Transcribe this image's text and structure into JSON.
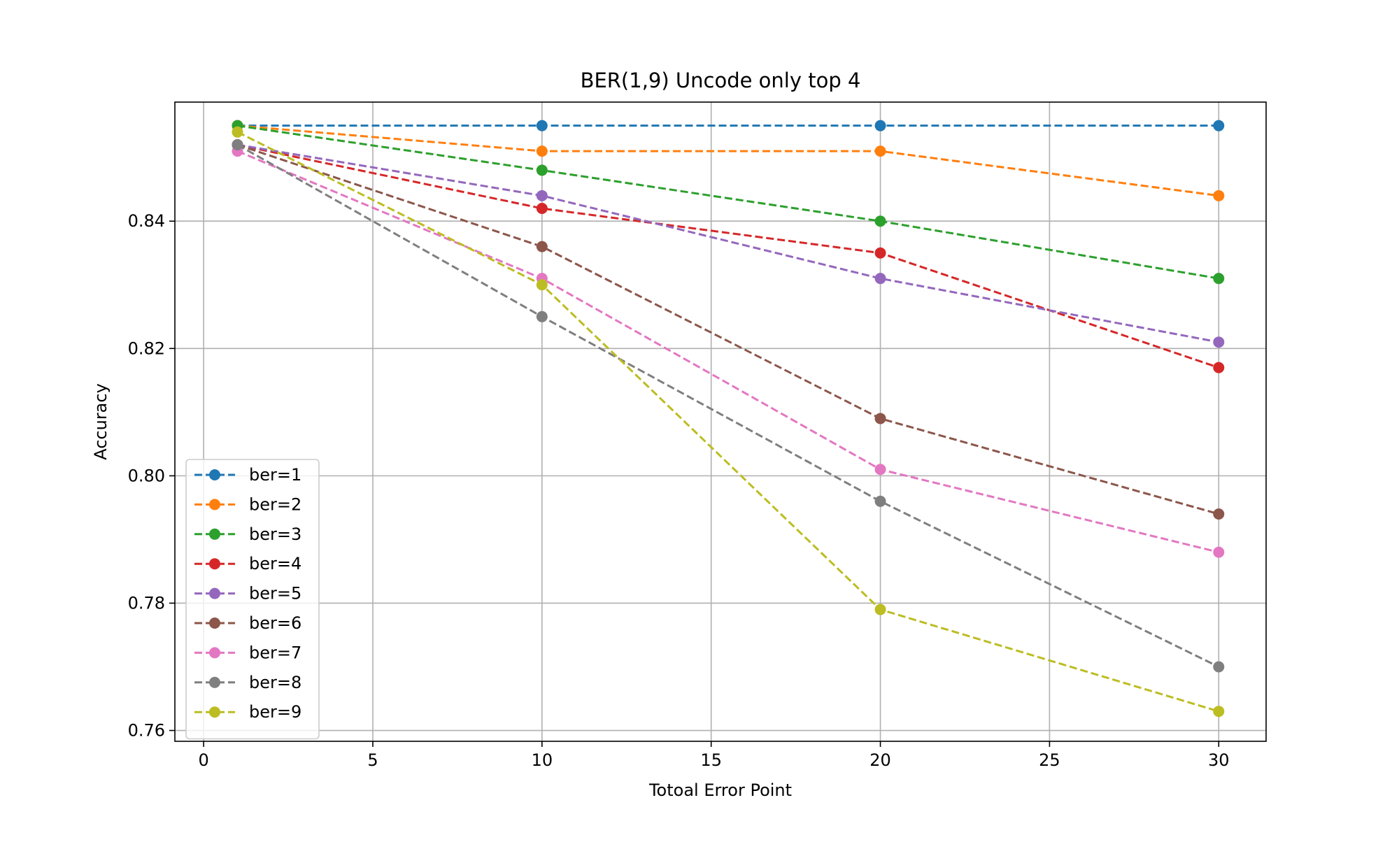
{
  "chart_data": {
    "type": "line",
    "title": "BER(1,9) Uncode only top 4",
    "xlabel": "Totoal Error Point",
    "ylabel": "Accuracy",
    "xlim": [
      -0.85,
      31.4
    ],
    "ylim": [
      0.7583,
      0.8587
    ],
    "xticks": [
      0,
      5,
      10,
      15,
      20,
      25,
      30
    ],
    "xtick_labels": [
      "0",
      "5",
      "10",
      "15",
      "20",
      "25",
      "30"
    ],
    "yticks": [
      0.76,
      0.78,
      0.8,
      0.82,
      0.84
    ],
    "ytick_labels": [
      "0.76",
      "0.78",
      "0.80",
      "0.82",
      "0.84"
    ],
    "grid": true,
    "legend_position": "lower-left",
    "line_style": "dashed",
    "marker": "circle",
    "x": [
      1,
      10,
      20,
      30
    ],
    "series": [
      {
        "name": "ber=1",
        "color": "#1f77b4",
        "values": [
          0.855,
          0.855,
          0.855,
          0.855
        ]
      },
      {
        "name": "ber=2",
        "color": "#ff7f0e",
        "values": [
          0.855,
          0.851,
          0.851,
          0.844
        ]
      },
      {
        "name": "ber=3",
        "color": "#2ca02c",
        "values": [
          0.855,
          0.848,
          0.84,
          0.831
        ]
      },
      {
        "name": "ber=4",
        "color": "#d62728",
        "values": [
          0.852,
          0.842,
          0.835,
          0.817
        ]
      },
      {
        "name": "ber=5",
        "color": "#9467bd",
        "values": [
          0.852,
          0.844,
          0.831,
          0.821
        ]
      },
      {
        "name": "ber=6",
        "color": "#8c564b",
        "values": [
          0.852,
          0.836,
          0.809,
          0.794
        ]
      },
      {
        "name": "ber=7",
        "color": "#e377c2",
        "values": [
          0.851,
          0.831,
          0.801,
          0.788
        ]
      },
      {
        "name": "ber=8",
        "color": "#7f7f7f",
        "values": [
          0.852,
          0.825,
          0.796,
          0.77
        ]
      },
      {
        "name": "ber=9",
        "color": "#bcbd22",
        "values": [
          0.854,
          0.83,
          0.779,
          0.763
        ]
      }
    ]
  }
}
